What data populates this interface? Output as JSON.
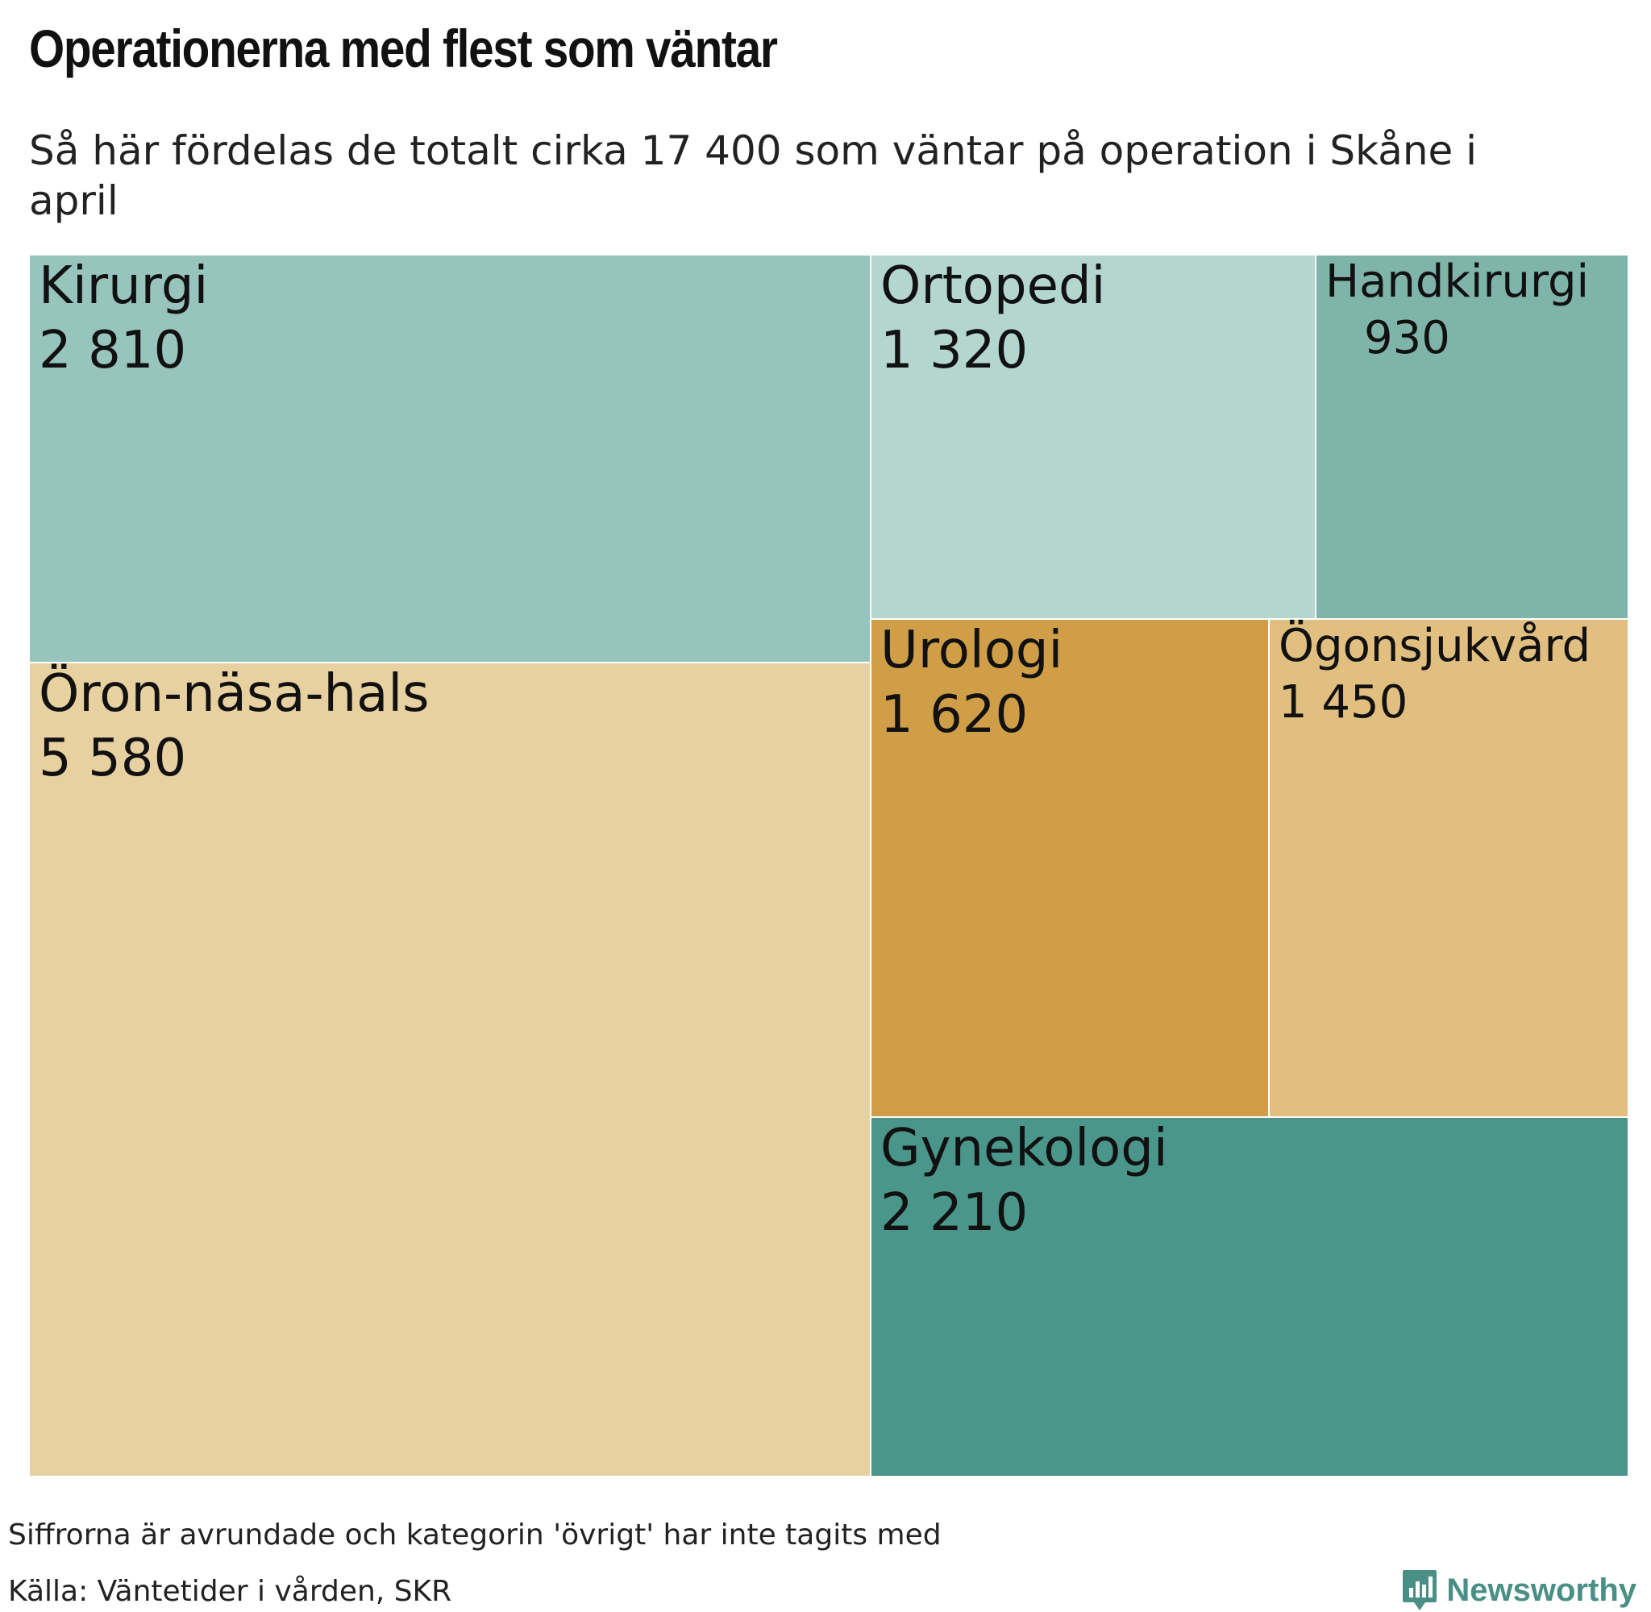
{
  "chart_data": {
    "type": "treemap",
    "title": "Operationerna med flest som väntar",
    "subtitle": "Så här fördelas de totalt cirka 17 400 som väntar på operation i Skåne i april",
    "cells": [
      {
        "name": "Kirurgi",
        "value_label": "2 810",
        "value": 2810,
        "color": "#98c4be"
      },
      {
        "name": "Öron-näsa-hals",
        "value_label": "5 580",
        "value": 5580,
        "color": "#e8d1a1"
      },
      {
        "name": "Ortopedi",
        "value_label": "1 320",
        "value": 1320,
        "color": "#b3d6cf"
      },
      {
        "name": "Handkirurgi",
        "value_label": "930",
        "value": 930,
        "color": "#7fb4ab"
      },
      {
        "name": "Urologi",
        "value_label": "1 620",
        "value": 1620,
        "color": "#d09e46"
      },
      {
        "name": "Ögonsjukvård",
        "value_label": "1 450",
        "value": 1450,
        "color": "#e1bf80"
      },
      {
        "name": "Gynekologi",
        "value_label": "2 210",
        "value": 2210,
        "color": "#4b968a"
      }
    ]
  },
  "footer": {
    "note": "Siffrorna är avrundade och kategorin 'övrigt' har inte tagits med",
    "source": "Källa: Väntetider i vården, SKR",
    "brand": "Newsworthy",
    "brand_color": "#4a8f86"
  }
}
